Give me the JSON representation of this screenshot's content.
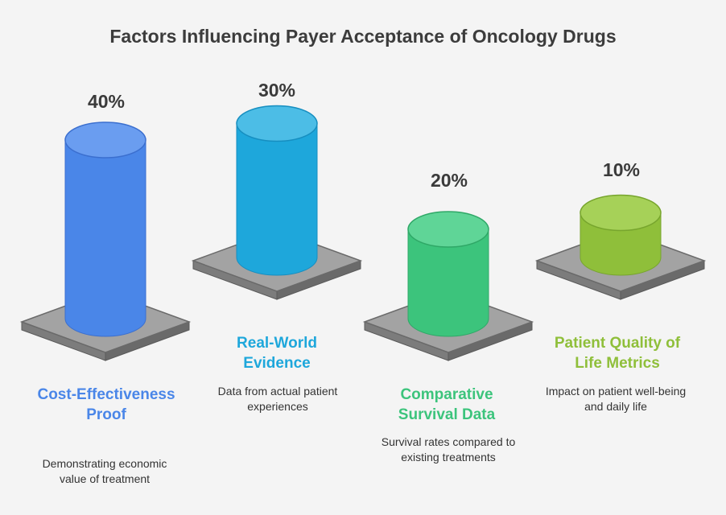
{
  "chart_data": {
    "type": "bar",
    "title": "Factors Influencing Payer Acceptance of Oncology Drugs",
    "categories": [
      "Cost-Effectiveness Proof",
      "Real-World Evidence",
      "Comparative Survival Data",
      "Patient Quality of Life Metrics"
    ],
    "values": [
      40,
      30,
      20,
      10
    ],
    "value_labels": [
      "40%",
      "30%",
      "20%",
      "10%"
    ],
    "descriptions": [
      "Demonstrating economic value of treatment",
      "Data from actual patient experiences",
      "Survival rates compared to existing treatments",
      "Impact on patient well-being and daily life"
    ],
    "colors": [
      "#4a86e8",
      "#1ea7db",
      "#3cc47c",
      "#8fbf3a"
    ],
    "colors_light": [
      "#6a9df0",
      "#4cbde6",
      "#5fd597",
      "#a6d158"
    ],
    "colors_dark": [
      "#3b6fcf",
      "#168ec0",
      "#2fa867",
      "#77a52d"
    ]
  }
}
